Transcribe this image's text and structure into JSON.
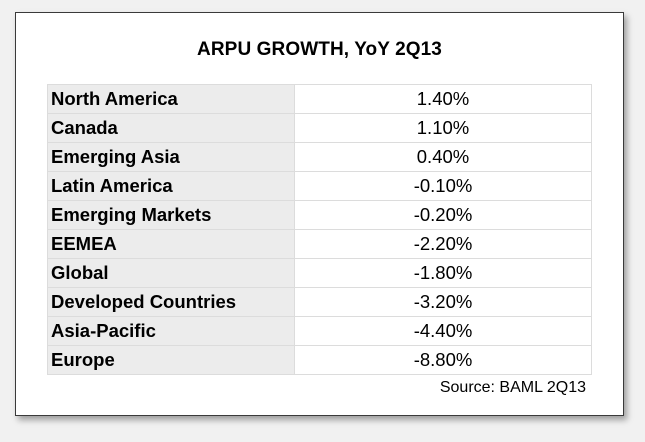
{
  "chart_data": {
    "type": "table",
    "title": "ARPU GROWTH, YoY 2Q13",
    "rows": [
      {
        "region": "North America",
        "value": "1.40%"
      },
      {
        "region": "Canada",
        "value": "1.10%"
      },
      {
        "region": "Emerging Asia",
        "value": "0.40%"
      },
      {
        "region": "Latin America",
        "value": "-0.10%"
      },
      {
        "region": "Emerging Markets",
        "value": "-0.20%"
      },
      {
        "region": "EEMEA",
        "value": "-2.20%"
      },
      {
        "region": "Global",
        "value": "-1.80%"
      },
      {
        "region": "Developed Countries",
        "value": "-3.20%"
      },
      {
        "region": "Asia-Pacific",
        "value": "-4.40%"
      },
      {
        "region": "Europe",
        "value": "-8.80%"
      }
    ],
    "source": "Source: BAML 2Q13"
  }
}
